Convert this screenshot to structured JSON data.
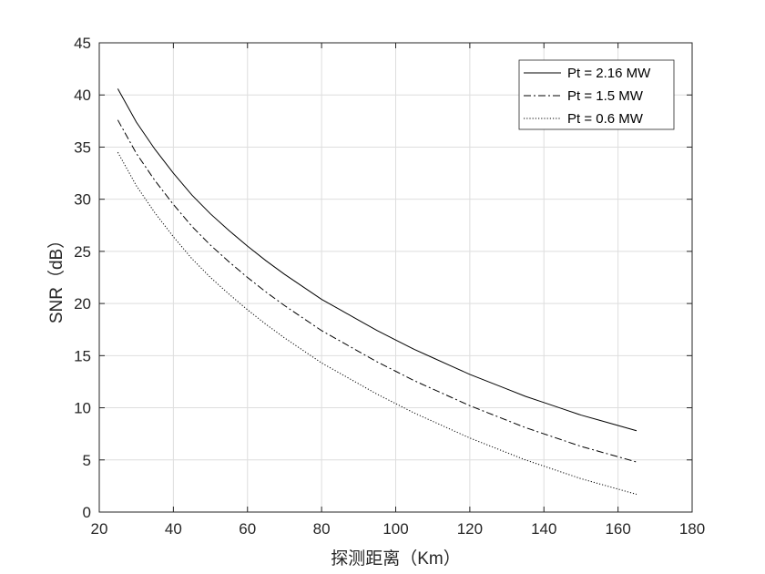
{
  "chart_data": {
    "type": "line",
    "title": "",
    "xlabel": "探测距离（Km）",
    "ylabel": "SNR（dB）",
    "xlim": [
      20,
      180
    ],
    "ylim": [
      0,
      45
    ],
    "xticks": [
      20,
      40,
      60,
      80,
      100,
      120,
      140,
      160,
      180
    ],
    "yticks": [
      0,
      5,
      10,
      15,
      20,
      25,
      30,
      35,
      40,
      45
    ],
    "grid": true,
    "legend_position": "top-right",
    "x": [
      25,
      30,
      35,
      40,
      45,
      50,
      55,
      60,
      65,
      70,
      75,
      80,
      85,
      90,
      95,
      100,
      105,
      110,
      115,
      120,
      125,
      130,
      135,
      140,
      145,
      150,
      155,
      160,
      165
    ],
    "series": [
      {
        "name": "Pt = 2.16 MW",
        "line_style": "solid",
        "values": [
          40.6,
          37.4,
          34.8,
          32.5,
          30.4,
          28.6,
          27.0,
          25.5,
          24.1,
          22.8,
          21.6,
          20.4,
          19.4,
          18.4,
          17.4,
          16.5,
          15.6,
          14.8,
          14.0,
          13.2,
          12.5,
          11.8,
          11.1,
          10.5,
          9.9,
          9.3,
          8.8,
          8.3,
          7.8
        ]
      },
      {
        "name": "Pt = 1.5 MW",
        "line_style": "dash-dot",
        "values": [
          37.6,
          34.4,
          31.8,
          29.5,
          27.4,
          25.6,
          24.0,
          22.5,
          21.1,
          19.8,
          18.6,
          17.4,
          16.4,
          15.4,
          14.4,
          13.5,
          12.6,
          11.8,
          11.0,
          10.2,
          9.5,
          8.8,
          8.1,
          7.5,
          6.9,
          6.3,
          5.8,
          5.3,
          4.8
        ]
      },
      {
        "name": "Pt = 0.6 MW",
        "line_style": "dotted",
        "values": [
          34.5,
          31.3,
          28.7,
          26.4,
          24.3,
          22.5,
          20.9,
          19.4,
          18.0,
          16.7,
          15.5,
          14.3,
          13.3,
          12.3,
          11.3,
          10.4,
          9.5,
          8.7,
          7.9,
          7.1,
          6.4,
          5.7,
          5.0,
          4.4,
          3.8,
          3.2,
          2.7,
          2.2,
          1.7
        ]
      }
    ]
  }
}
